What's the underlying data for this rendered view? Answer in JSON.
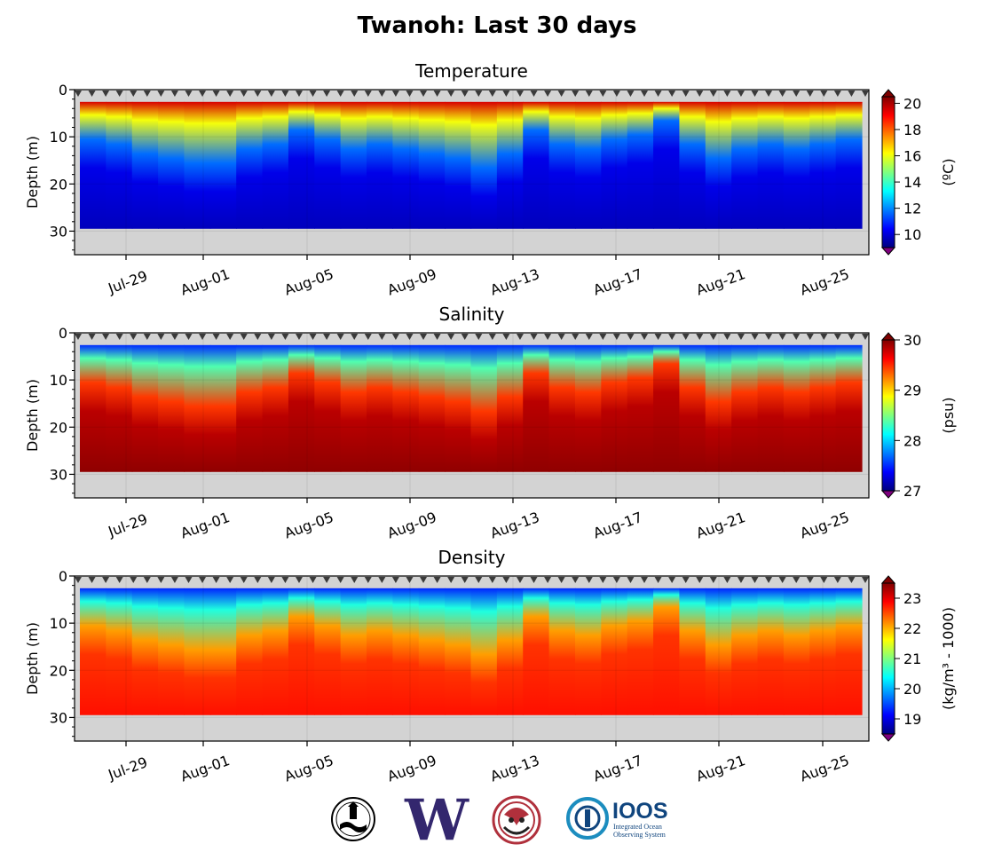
{
  "title": "Twanoh: Last 30 days",
  "colors": {
    "land": "#d3d3d3",
    "marker": "#3a3a3a",
    "jet": [
      "#00007f",
      "#0000ff",
      "#007fff",
      "#00ffff",
      "#7fff7f",
      "#ffff00",
      "#ff7f00",
      "#ff0000",
      "#7f0000"
    ]
  },
  "chart_data": [
    {
      "type": "heatmap",
      "title": "Temperature",
      "ylabel": "Depth (m)",
      "yticks": [
        "0",
        "10",
        "20",
        "30"
      ],
      "ylim": [
        35,
        0
      ],
      "xticks": [
        "Jul-29",
        "Aug-01",
        "Aug-05",
        "Aug-09",
        "Aug-13",
        "Aug-17",
        "Aug-21",
        "Aug-25"
      ],
      "colorbar_label": "(ºC)",
      "colorbar_ticks": [
        "20",
        "18",
        "16",
        "14",
        "12",
        "10"
      ],
      "colorbar_range": [
        9,
        20.5
      ],
      "surface_value": 19.5,
      "deep_value": 9.7,
      "mixed_depth_m": [
        8,
        9,
        11,
        12,
        13,
        13,
        10,
        9,
        6,
        8,
        10,
        9,
        10,
        11,
        12,
        14,
        11,
        6,
        9,
        10,
        8,
        7,
        4,
        9,
        12,
        10,
        9,
        10,
        9,
        8
      ],
      "max_depth_m": 29.5
    },
    {
      "type": "heatmap",
      "title": "Salinity",
      "ylabel": "Depth (m)",
      "yticks": [
        "0",
        "10",
        "20",
        "30"
      ],
      "ylim": [
        35,
        0
      ],
      "xticks": [
        "Jul-29",
        "Aug-01",
        "Aug-05",
        "Aug-09",
        "Aug-13",
        "Aug-17",
        "Aug-21",
        "Aug-25"
      ],
      "colorbar_label": "(psu)",
      "colorbar_ticks": [
        "30",
        "29",
        "28",
        "27"
      ],
      "colorbar_range": [
        27,
        30
      ],
      "surface_value": 27.5,
      "deep_value": 29.95,
      "mixed_depth_m": [
        8,
        9,
        11,
        12,
        13,
        13,
        10,
        9,
        6,
        8,
        10,
        9,
        10,
        11,
        12,
        14,
        11,
        6,
        9,
        10,
        8,
        7,
        4,
        9,
        12,
        10,
        9,
        10,
        9,
        8
      ],
      "max_depth_m": 29.5
    },
    {
      "type": "heatmap",
      "title": "Density",
      "ylabel": "Depth (m)",
      "yticks": [
        "0",
        "10",
        "20",
        "30"
      ],
      "ylim": [
        35,
        0
      ],
      "xticks": [
        "Jul-29",
        "Aug-01",
        "Aug-05",
        "Aug-09",
        "Aug-13",
        "Aug-17",
        "Aug-21",
        "Aug-25"
      ],
      "colorbar_label": "(kg/m³ - 1000)",
      "colorbar_ticks": [
        "23",
        "22",
        "21",
        "20",
        "19"
      ],
      "colorbar_range": [
        18.5,
        23.5
      ],
      "surface_value": 19.3,
      "deep_value": 22.8,
      "mixed_depth_m": [
        8,
        9,
        11,
        12,
        13,
        13,
        10,
        9,
        6,
        8,
        10,
        9,
        10,
        11,
        12,
        14,
        11,
        6,
        9,
        10,
        8,
        7,
        4,
        9,
        12,
        10,
        9,
        10,
        9,
        8
      ],
      "max_depth_m": 29.5
    }
  ],
  "logos": [
    {
      "name": "orca-buoy-seal",
      "text": ""
    },
    {
      "name": "uw-logo",
      "text": "W"
    },
    {
      "name": "tribal-logo",
      "text": ""
    },
    {
      "name": "ioos-logo",
      "text": "IOOS",
      "subtext": [
        "Integrated Ocean",
        "Observing System"
      ]
    }
  ]
}
